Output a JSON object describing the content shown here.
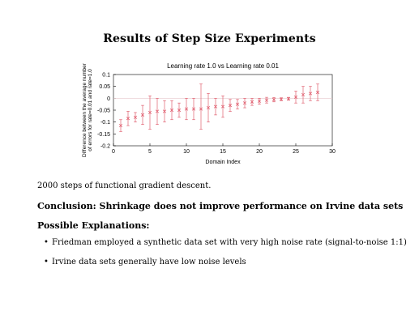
{
  "slide": {
    "title": "Results of Step Size Experiments",
    "note": "2000 steps of functional gradient descent.",
    "conclusion": "Conclusion: Shrinkage does not improve performance on Irvine data sets",
    "explanations_heading": "Possible Explanations:",
    "explanations": [
      "Friedman employed a synthetic data set with very high noise rate (signal-to-noise 1:1)",
      "Irvine data sets generally have low noise levels"
    ],
    "bullet_glyph": "•"
  },
  "chart_data": {
    "type": "scatter",
    "title": "Learning rate 1.0 vs Learning rate 0.01",
    "xlabel": "Domain Index",
    "ylabel_lines": [
      "Difference between the average number",
      "of errors for rate=0.01 and rate=1.0"
    ],
    "xlim": [
      0,
      30
    ],
    "ylim": [
      -0.2,
      0.1
    ],
    "xticks": [
      0,
      5,
      10,
      15,
      20,
      25,
      30
    ],
    "yticks": [
      -0.2,
      -0.15,
      -0.1,
      -0.05,
      0,
      0.05,
      0.1
    ],
    "ytick_labels": [
      "-0.2",
      "-0.15",
      "-0.1",
      "-0.05",
      "0",
      "0.05",
      "0.1"
    ],
    "grid": false,
    "zero_line": true,
    "color": "#e06070",
    "points": [
      {
        "x": 1,
        "y": -0.115,
        "lo": -0.14,
        "hi": -0.09
      },
      {
        "x": 2,
        "y": -0.085,
        "lo": -0.115,
        "hi": -0.055
      },
      {
        "x": 3,
        "y": -0.08,
        "lo": -0.1,
        "hi": -0.06
      },
      {
        "x": 4,
        "y": -0.07,
        "lo": -0.11,
        "hi": -0.03
      },
      {
        "x": 5,
        "y": -0.06,
        "lo": -0.13,
        "hi": 0.01
      },
      {
        "x": 6,
        "y": -0.055,
        "lo": -0.11,
        "hi": 0.0
      },
      {
        "x": 7,
        "y": -0.055,
        "lo": -0.1,
        "hi": -0.01
      },
      {
        "x": 8,
        "y": -0.05,
        "lo": -0.09,
        "hi": -0.01
      },
      {
        "x": 9,
        "y": -0.05,
        "lo": -0.08,
        "hi": -0.02
      },
      {
        "x": 10,
        "y": -0.045,
        "lo": -0.09,
        "hi": 0.0
      },
      {
        "x": 11,
        "y": -0.045,
        "lo": -0.09,
        "hi": 0.0
      },
      {
        "x": 12,
        "y": -0.045,
        "lo": -0.13,
        "hi": 0.06
      },
      {
        "x": 13,
        "y": -0.04,
        "lo": -0.1,
        "hi": 0.02
      },
      {
        "x": 14,
        "y": -0.035,
        "lo": -0.07,
        "hi": 0.0
      },
      {
        "x": 15,
        "y": -0.035,
        "lo": -0.08,
        "hi": 0.01
      },
      {
        "x": 16,
        "y": -0.03,
        "lo": -0.055,
        "hi": -0.005
      },
      {
        "x": 17,
        "y": -0.025,
        "lo": -0.045,
        "hi": -0.005
      },
      {
        "x": 18,
        "y": -0.02,
        "lo": -0.04,
        "hi": 0.0
      },
      {
        "x": 19,
        "y": -0.015,
        "lo": -0.03,
        "hi": 0.0
      },
      {
        "x": 20,
        "y": -0.012,
        "lo": -0.025,
        "hi": 0.0
      },
      {
        "x": 21,
        "y": -0.008,
        "lo": -0.02,
        "hi": 0.004
      },
      {
        "x": 22,
        "y": -0.006,
        "lo": -0.015,
        "hi": 0.003
      },
      {
        "x": 23,
        "y": -0.004,
        "lo": -0.01,
        "hi": 0.002
      },
      {
        "x": 24,
        "y": -0.002,
        "lo": -0.008,
        "hi": 0.004
      },
      {
        "x": 25,
        "y": 0.005,
        "lo": -0.02,
        "hi": 0.03
      },
      {
        "x": 26,
        "y": 0.015,
        "lo": -0.02,
        "hi": 0.05
      },
      {
        "x": 27,
        "y": 0.02,
        "lo": -0.01,
        "hi": 0.05
      },
      {
        "x": 28,
        "y": 0.025,
        "lo": -0.01,
        "hi": 0.06
      }
    ]
  }
}
